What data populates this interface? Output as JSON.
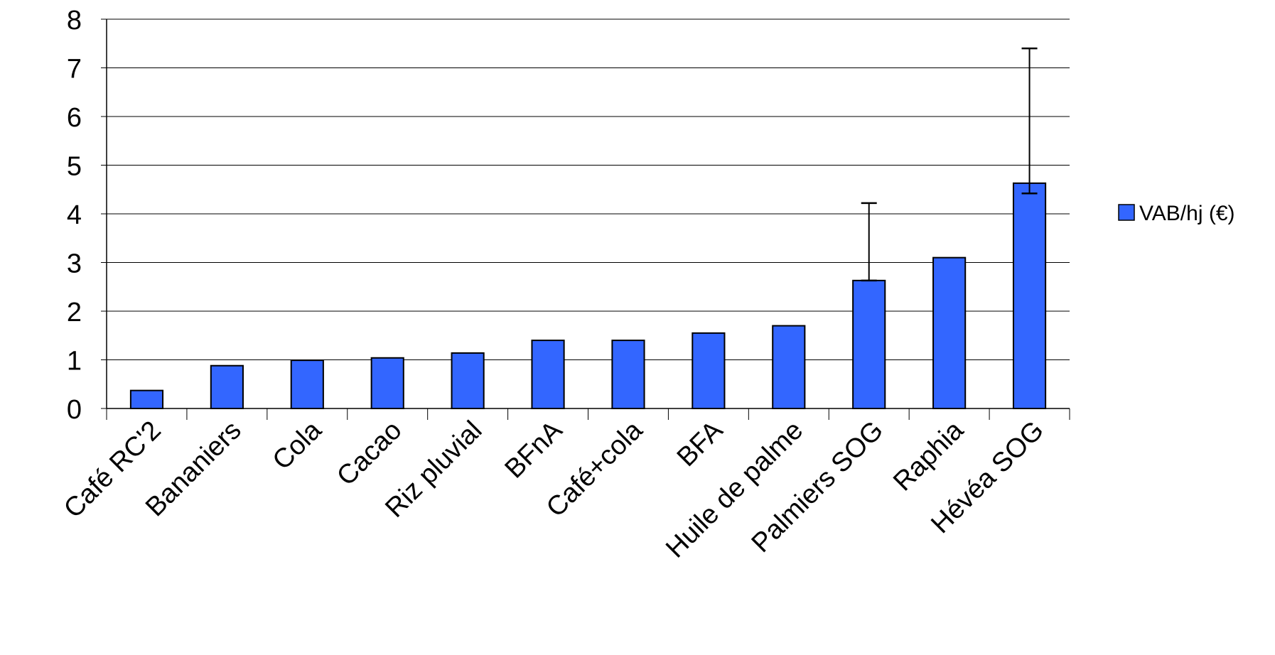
{
  "chart_data": {
    "type": "bar",
    "categories": [
      "Café RC'2",
      "Bananiers",
      "Cola",
      "Cacao",
      "Riz pluvial",
      "BFnA",
      "Café+cola",
      "BFA",
      "Huile de palme",
      "Palmiers SOG",
      "Raphia",
      "Hévéa SOG"
    ],
    "series": [
      {
        "name": "VAB/hj (€)",
        "values": [
          0.37,
          0.88,
          0.99,
          1.04,
          1.14,
          1.4,
          1.4,
          1.55,
          1.7,
          2.63,
          3.1,
          4.63
        ],
        "error_bars": [
          null,
          null,
          null,
          null,
          null,
          null,
          null,
          null,
          null,
          [
            2.63,
            4.22
          ],
          null,
          [
            4.42,
            7.4
          ]
        ]
      }
    ],
    "ylim": [
      0,
      8
    ],
    "yticks": [
      0,
      1,
      2,
      3,
      4,
      5,
      6,
      7,
      8
    ],
    "grid": true,
    "legend_position": "right",
    "colors": {
      "bar": "#3366ff",
      "bar_stroke": "#000000",
      "grid": "#000000",
      "axis": "#000000"
    }
  }
}
